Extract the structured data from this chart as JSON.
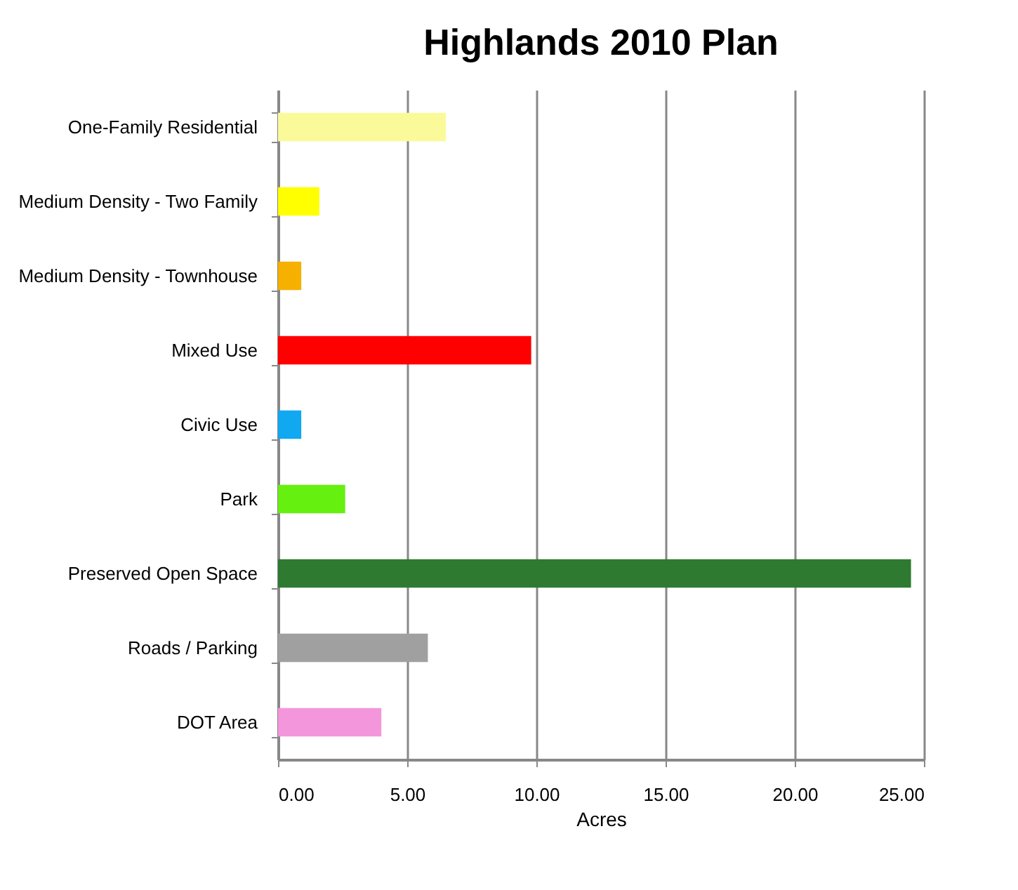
{
  "chart_data": {
    "type": "bar",
    "orientation": "horizontal",
    "title": "Highlands 2010 Plan",
    "xlabel": "Acres",
    "categories": [
      "One-Family Residential",
      "Medium Density - Two Family",
      "Medium Density - Townhouse",
      "Mixed Use",
      "Civic Use",
      "Park",
      "Preserved Open Space",
      "Roads / Parking",
      "DOT Area"
    ],
    "values": [
      6.5,
      1.6,
      0.9,
      9.8,
      0.9,
      2.6,
      24.5,
      5.8,
      4.0
    ],
    "colors": [
      "#fafa9a",
      "#ffff00",
      "#f5b000",
      "#ff0000",
      "#10a8f0",
      "#66f010",
      "#2e7a30",
      "#a0a0a0",
      "#f496dc"
    ],
    "xlim": [
      0,
      25
    ],
    "xticks": [
      {
        "value": 0,
        "label": "0.00"
      },
      {
        "value": 5,
        "label": "5.00"
      },
      {
        "value": 10,
        "label": "10.00"
      },
      {
        "value": 15,
        "label": "15.00"
      },
      {
        "value": 20,
        "label": "20.00"
      },
      {
        "value": 25,
        "label": "25.00"
      }
    ],
    "grid": "x"
  }
}
